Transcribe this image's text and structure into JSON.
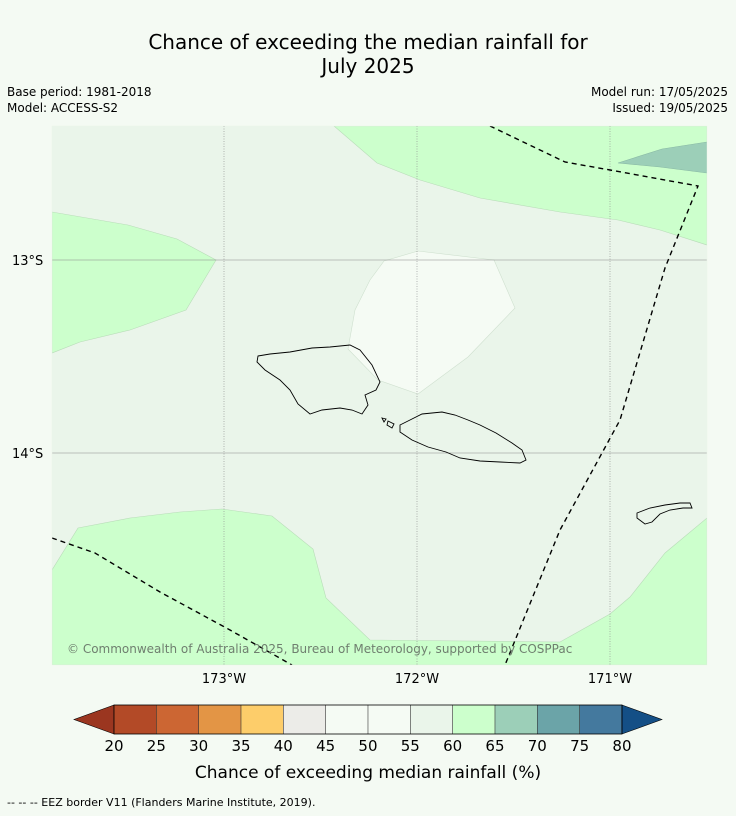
{
  "title_line1": "Chance of exceeding the median rainfall for",
  "title_line2": "July 2025",
  "base_period": "Base period: 1981-2018",
  "model": "Model: ACCESS-S2",
  "model_run": "Model run: 17/05/2025",
  "issued": "Issued: 19/05/2025",
  "copyright": "© Commonwealth of Australia 2025, Bureau of Meteorology, supported by COSPPac",
  "lat_labels": [
    "13°S",
    "14°S"
  ],
  "lon_labels": [
    "173°W",
    "172°W",
    "171°W"
  ],
  "colorbar": {
    "title": "Chance of exceeding median rainfall (%)",
    "ticks": [
      "20",
      "25",
      "30",
      "35",
      "40",
      "45",
      "50",
      "55",
      "60",
      "65",
      "70",
      "75",
      "80"
    ],
    "colors": [
      "#b34a27",
      "#cc6633",
      "#e39545",
      "#fdcd6a",
      "#ecece8",
      "#f5fbf4",
      "#f5fbf4",
      "#eaf5ea",
      "#ccffcc",
      "#9ccfb8",
      "#6ba4a8",
      "#44799e"
    ],
    "under_color": "#9b3620",
    "over_color": "#144f86"
  },
  "footnote": "-- -- -- EEZ border V11 (Flanders Marine Institute, 2019)."
}
